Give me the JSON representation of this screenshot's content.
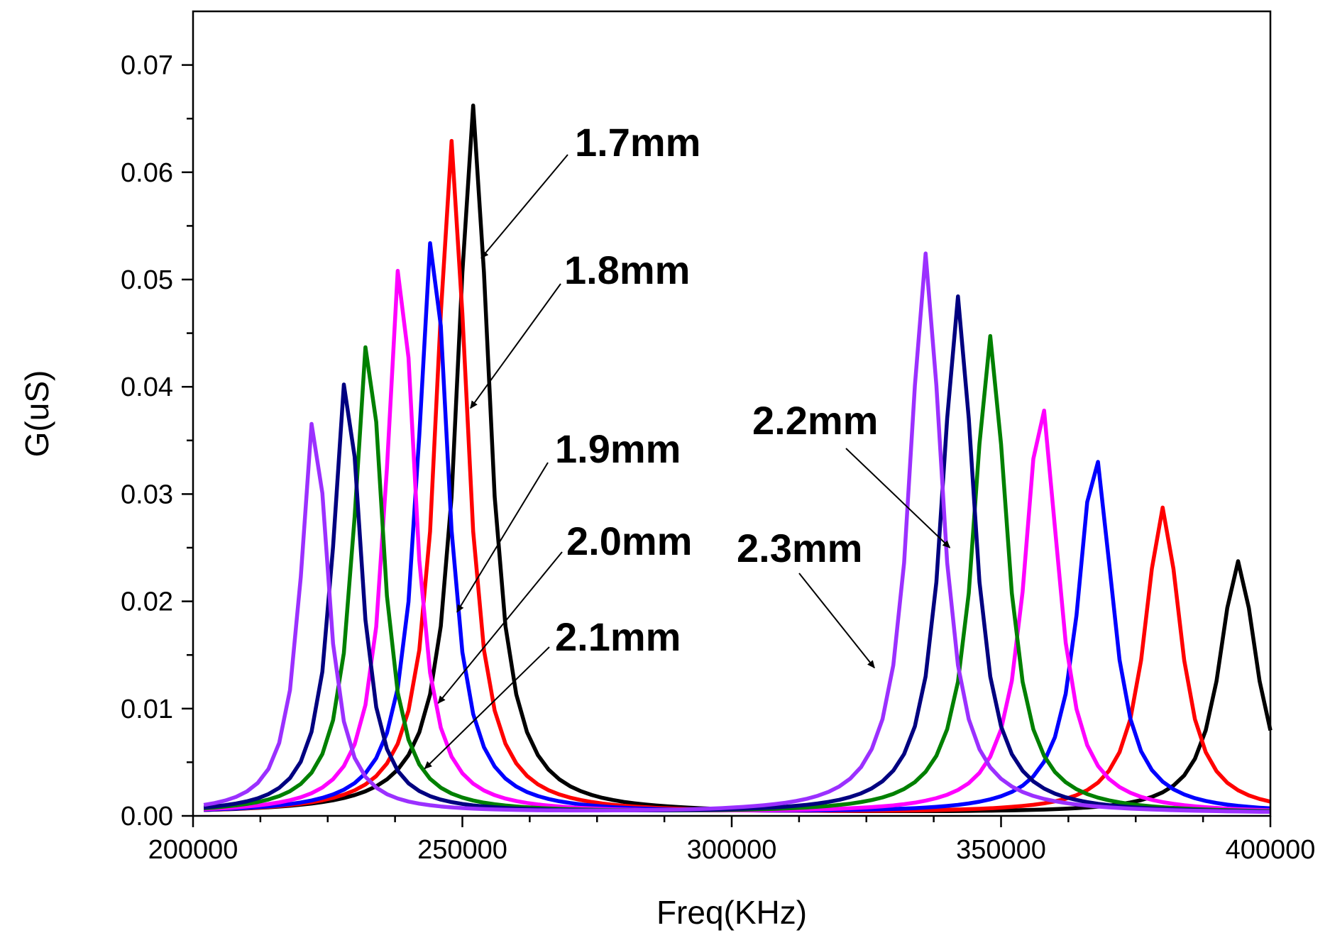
{
  "chart_data": {
    "type": "line",
    "title": "",
    "xlabel": "Freq(KHz)",
    "ylabel": "G(uS)",
    "xlim": [
      200000,
      400000
    ],
    "ylim": [
      0,
      0.075
    ],
    "x_ticks": [
      200000,
      250000,
      300000,
      350000,
      400000
    ],
    "x_tick_labels": [
      "200000",
      "250000",
      "300000",
      "350000",
      "400000"
    ],
    "y_ticks": [
      0.0,
      0.01,
      0.02,
      0.03,
      0.04,
      0.05,
      0.06,
      0.07
    ],
    "y_tick_labels": [
      "0.00",
      "0.01",
      "0.02",
      "0.03",
      "0.04",
      "0.05",
      "0.06",
      "0.07"
    ],
    "grid": false,
    "series": [
      {
        "name": "1.7mm",
        "color": "#000000",
        "peaks": [
          {
            "x": 252000,
            "y": 0.066,
            "w": 3600
          },
          {
            "x": 394000,
            "y": 0.0235,
            "w": 4200
          }
        ]
      },
      {
        "name": "1.8mm",
        "color": "#ff0000",
        "peaks": [
          {
            "x": 248000,
            "y": 0.0627,
            "w": 3400
          },
          {
            "x": 380000,
            "y": 0.0285,
            "w": 4000
          }
        ]
      },
      {
        "name": "1.9mm",
        "color": "#0000ff",
        "peaks": [
          {
            "x": 244500,
            "y": 0.0543,
            "w": 3400
          },
          {
            "x": 367500,
            "y": 0.0333,
            "w": 3900
          }
        ]
      },
      {
        "name": "2.0mm",
        "color": "#ff00ff",
        "peaks": [
          {
            "x": 238500,
            "y": 0.0518,
            "w": 3200
          },
          {
            "x": 357500,
            "y": 0.0382,
            "w": 3800
          }
        ]
      },
      {
        "name": "2.1mm",
        "color": "#008000",
        "peaks": [
          {
            "x": 232500,
            "y": 0.0445,
            "w": 3200
          },
          {
            "x": 348000,
            "y": 0.0445,
            "w": 3700
          }
        ]
      },
      {
        "name": "2.2mm",
        "color": "#000080",
        "peaks": [
          {
            "x": 228500,
            "y": 0.041,
            "w": 3100
          },
          {
            "x": 342000,
            "y": 0.0482,
            "w": 3600
          }
        ]
      },
      {
        "name": "2.3mm",
        "color": "#9b30ff",
        "peaks": [
          {
            "x": 222500,
            "y": 0.0373,
            "w": 3000
          },
          {
            "x": 336000,
            "y": 0.0522,
            "w": 3600
          }
        ]
      }
    ],
    "annotations": [
      {
        "text": "1.7mm",
        "arrow_to": {
          "x": 253500,
          "y": 0.052
        }
      },
      {
        "text": "1.8mm",
        "arrow_to": {
          "x": 251500,
          "y": 0.038
        }
      },
      {
        "text": "1.9mm",
        "arrow_to": {
          "x": 249000,
          "y": 0.019
        }
      },
      {
        "text": "2.0mm",
        "arrow_to": {
          "x": 245500,
          "y": 0.0105
        }
      },
      {
        "text": "2.1mm",
        "arrow_to": {
          "x": 243000,
          "y": 0.0044
        }
      },
      {
        "text": "2.2mm",
        "arrow_to": {
          "x": 340500,
          "y": 0.025
        }
      },
      {
        "text": "2.3mm",
        "arrow_to": {
          "x": 326500,
          "y": 0.0138
        }
      }
    ]
  }
}
